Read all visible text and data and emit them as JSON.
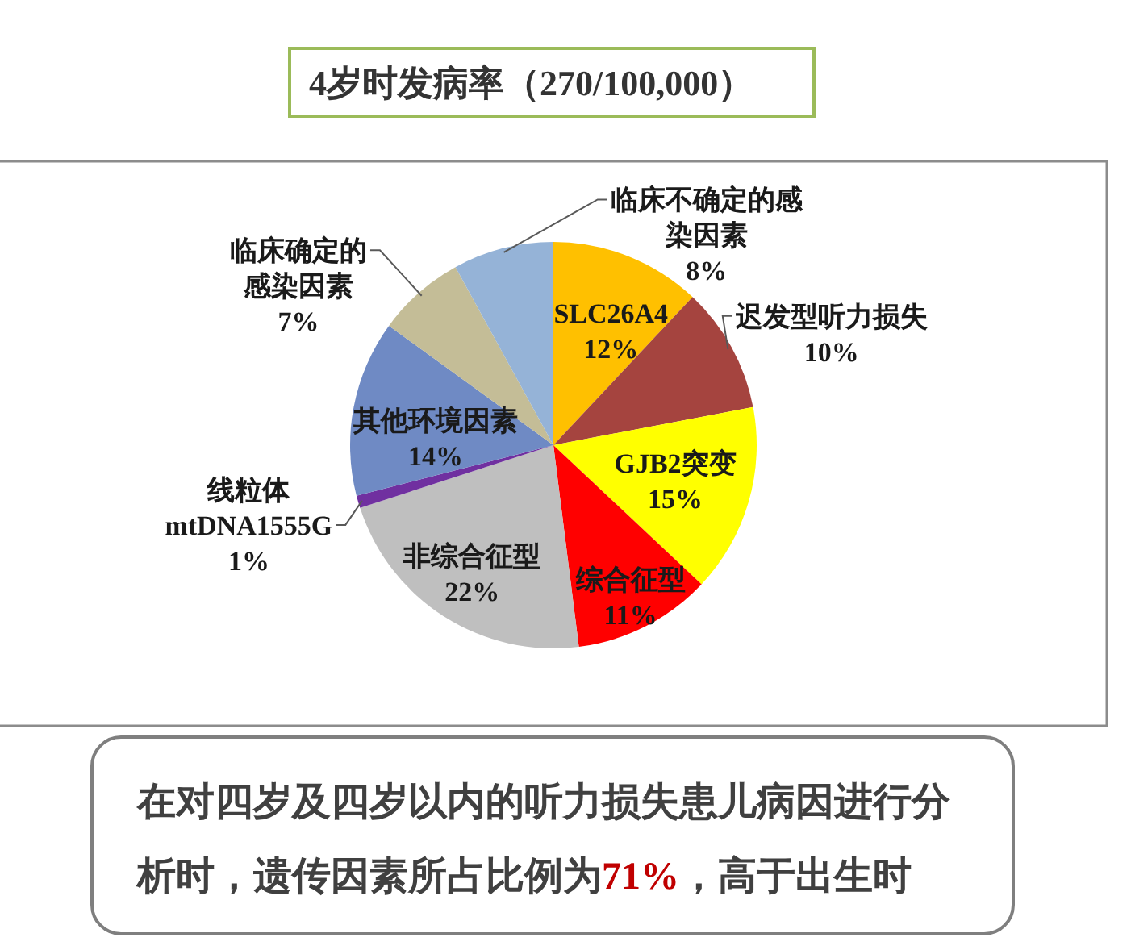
{
  "chart_data": {
    "type": "pie",
    "title": "4岁时发病率（270/100,000）",
    "categories": [
      "SLC26A4",
      "迟发型听力损失",
      "GJB2突变",
      "综合征型",
      "非综合征型",
      "线粒体 mtDNA1555G",
      "其他环境因素",
      "临床确定的感染因素",
      "临床不确定的感染因素"
    ],
    "values": [
      12,
      10,
      15,
      11,
      22,
      1,
      14,
      7,
      8
    ],
    "colors": [
      "#ffc000",
      "#a5443f",
      "#ffff00",
      "#ff0000",
      "#bfbfbf",
      "#7030a0",
      "#6f8ac4",
      "#c4bd97",
      "#95b3d7"
    ],
    "value_labels": [
      "12%",
      "10%",
      "15%",
      "11%",
      "22%",
      "1%",
      "14%",
      "7%",
      "8%"
    ],
    "annotations": [
      "在对四岁及四岁以内的听力损失患儿病因进行分析时，遗传因素所占比例为71%，高于出生时"
    ]
  }
}
